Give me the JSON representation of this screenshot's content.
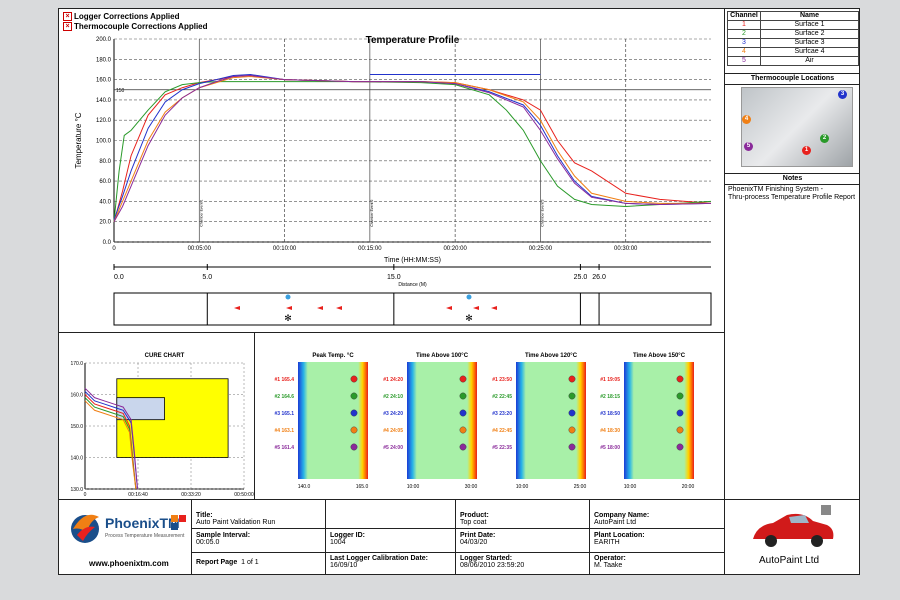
{
  "header": {
    "flag1": "Logger Corrections Applied",
    "flag2": "Thermocouple Corrections Applied"
  },
  "colors": {
    "ch1": "#e8211d",
    "ch2": "#2a9a2a",
    "ch3": "#2233cc",
    "ch4": "#f07f14",
    "ch5": "#8a2a9a"
  },
  "channels": {
    "head_channel": "Channel",
    "head_name": "Name",
    "rows": [
      {
        "id": "1",
        "name": "Surface 1"
      },
      {
        "id": "2",
        "name": "Surface 2"
      },
      {
        "id": "3",
        "name": "Surface 3"
      },
      {
        "id": "4",
        "name": "Surfcae 4"
      },
      {
        "id": "5",
        "name": "Air"
      }
    ]
  },
  "tc_locations": {
    "title": "Thermocouple Locations",
    "badges": [
      "1",
      "2",
      "3",
      "4",
      "5"
    ]
  },
  "notes": {
    "title": "Notes",
    "line1": "PhoenixTM Finishing System -",
    "line2": "Thru-process Temperature Profile Report"
  },
  "chart_data": [
    {
      "type": "line",
      "title": "Temperature Profile",
      "xlabel": "Time (HH:MM:SS)",
      "ylabel": "Temperature °C",
      "ylim": [
        0,
        200
      ],
      "xlim": [
        0,
        35
      ],
      "yticks": [
        "0.0",
        "20.0",
        "40.0",
        "60.0",
        "80.0",
        "100.0",
        "120.0",
        "140.0",
        "160.0",
        "180.0",
        "200.0"
      ],
      "xticks": [
        "00:05:00",
        "00:10:00",
        "00:15:00",
        "00:20:00",
        "00:25:00",
        "00:30:00"
      ],
      "x0label": "0",
      "ref_line_label": "150",
      "limit_line": {
        "y": 165,
        "x": [
          15,
          25
        ]
      },
      "series": [
        {
          "x": [
            0,
            0.5,
            1,
            2,
            3,
            4,
            5,
            6,
            7,
            8,
            10,
            14,
            18,
            20,
            22,
            24,
            25,
            26,
            27,
            28,
            30,
            32,
            35
          ],
          "y": [
            20,
            50,
            85,
            125,
            145,
            152,
            157,
            160,
            163,
            164,
            160,
            158,
            158,
            157,
            150,
            140,
            130,
            100,
            78,
            70,
            48,
            42,
            38
          ]
        },
        {
          "x": [
            0,
            0.3,
            0.6,
            1,
            1.5,
            2,
            3,
            4,
            5,
            6,
            7,
            8,
            10,
            14,
            18,
            20,
            22,
            23,
            24,
            25,
            26,
            27,
            28,
            30,
            32,
            35
          ],
          "y": [
            20,
            70,
            105,
            110,
            120,
            130,
            148,
            155,
            157,
            158,
            158,
            158,
            158,
            158,
            157,
            155,
            145,
            130,
            110,
            80,
            55,
            42,
            37,
            35,
            37,
            40
          ]
        },
        {
          "x": [
            0,
            0.5,
            1,
            2,
            3,
            4,
            5,
            6,
            7,
            8,
            10,
            14,
            18,
            20,
            22,
            24,
            25,
            26,
            27,
            28,
            30,
            32,
            35
          ],
          "y": [
            22,
            45,
            70,
            112,
            138,
            150,
            156,
            160,
            164,
            165,
            160,
            158,
            158,
            156,
            148,
            135,
            115,
            85,
            60,
            45,
            38,
            37,
            38
          ]
        },
        {
          "x": [
            0,
            0.5,
            1,
            2,
            3,
            4,
            5,
            6,
            7,
            8,
            10,
            14,
            18,
            20,
            22,
            24,
            25,
            26,
            27,
            28,
            30,
            32,
            35
          ],
          "y": [
            20,
            40,
            60,
            100,
            128,
            142,
            152,
            157,
            162,
            163,
            160,
            158,
            158,
            157,
            150,
            138,
            120,
            90,
            65,
            48,
            40,
            38,
            38
          ]
        },
        {
          "x": [
            0,
            0.5,
            1,
            2,
            3,
            4,
            5,
            6,
            7,
            8,
            10,
            14,
            18,
            20,
            22,
            24,
            25,
            26,
            27,
            28,
            30,
            32,
            35
          ],
          "y": [
            20,
            35,
            55,
            95,
            125,
            142,
            152,
            158,
            163,
            164,
            160,
            158,
            158,
            156,
            147,
            133,
            110,
            82,
            58,
            44,
            38,
            37,
            38
          ]
        }
      ],
      "annotations": [
        "Chamber Event 1",
        "Chamber Event 2",
        "Chamber Event 3"
      ]
    },
    {
      "type": "line",
      "title": "CURE CHART",
      "xlabel": "MM:SS",
      "ylim": [
        130,
        170
      ],
      "yticks": [
        "130.0",
        "140.0",
        "150.0",
        "160.0",
        "170.0"
      ],
      "xticks": [
        "00:16:40",
        "00:33:20",
        "00:50:00"
      ],
      "x0label": "0",
      "xlim": [
        0,
        50
      ],
      "cure_window": {
        "x": [
          10,
          45
        ],
        "y": [
          140,
          165
        ]
      },
      "cure_target": {
        "x": [
          10,
          25
        ],
        "y": [
          152,
          159
        ]
      },
      "series": [
        {
          "x": [
            0,
            3,
            6,
            9,
            12,
            14,
            15,
            16
          ],
          "y": [
            160,
            157,
            156,
            155,
            154,
            150,
            140,
            130
          ]
        },
        {
          "x": [
            0,
            3,
            6,
            9,
            12,
            14,
            15,
            16
          ],
          "y": [
            159,
            156,
            155,
            154,
            153,
            149,
            139,
            130
          ]
        },
        {
          "x": [
            0,
            3,
            6,
            9,
            12,
            14.5,
            15.5,
            16.5
          ],
          "y": [
            161,
            158,
            157,
            156,
            155,
            151,
            141,
            130
          ]
        },
        {
          "x": [
            0,
            3,
            6,
            9,
            12,
            14,
            15,
            16
          ],
          "y": [
            158,
            155,
            154,
            153,
            152,
            148,
            138,
            130
          ]
        },
        {
          "x": [
            0,
            3,
            6,
            9,
            12,
            14.5,
            15.5,
            16.5
          ],
          "y": [
            162,
            159,
            158,
            157,
            156,
            152,
            142,
            130
          ]
        }
      ]
    }
  ],
  "distance": {
    "label": "Distance (M)",
    "ticks": [
      "0.0",
      "5.0",
      "15.0",
      "25.0",
      "26.0"
    ]
  },
  "stats": [
    {
      "title": "Peak Temp. °C",
      "min": "140.0",
      "max": "165.0",
      "values": [
        "#1 165.4",
        "#2 164.6",
        "#3 165.1",
        "#4 163.1",
        "#5 161.4"
      ]
    },
    {
      "title": "Time Above 100°C",
      "min": "10:00",
      "max": "30:00",
      "values": [
        "#1 24:20",
        "#2 24:10",
        "#3 24:20",
        "#4 24:05",
        "#5 24:00"
      ]
    },
    {
      "title": "Time Above 120°C",
      "min": "10:00",
      "max": "25:00",
      "values": [
        "#1 23:50",
        "#2 22:45",
        "#3 23:20",
        "#4 22:45",
        "#5 22:35"
      ]
    },
    {
      "title": "Time Above 150°C",
      "min": "10:00",
      "max": "20:00",
      "values": [
        "#1 19:05",
        "#2 18:15",
        "#3 18:50",
        "#4 18:30",
        "#5 18:00"
      ]
    }
  ],
  "footer": {
    "brand": "PhoenixTM",
    "brand_tag": "Process Temperature Measurement",
    "url": "www.phoenixtm.com",
    "title_label": "Title:",
    "title": "Auto Paint Validation Run",
    "product_label": "Product:",
    "product": "Top coat",
    "company_label": "Company Name:",
    "company": "AutoPaint Ltd",
    "interval_label": "Sample Interval:",
    "interval": "00:05.0",
    "logger_label": "Logger ID:",
    "logger": "1004",
    "print_label": "Print Date:",
    "print": "04/03/20",
    "plant_label": "Plant Location:",
    "plant": "EARITH",
    "page_label": "Report Page",
    "page": "1 of 1",
    "cal_label": "Last Logger Calibration Date:",
    "cal": "16/09/10",
    "started_label": "Logger Started:",
    "started": "08/06/2010 23:59:20",
    "operator_label": "Operator:",
    "operator": "M. Taake",
    "client_logo": "AutoPaint Ltd"
  }
}
